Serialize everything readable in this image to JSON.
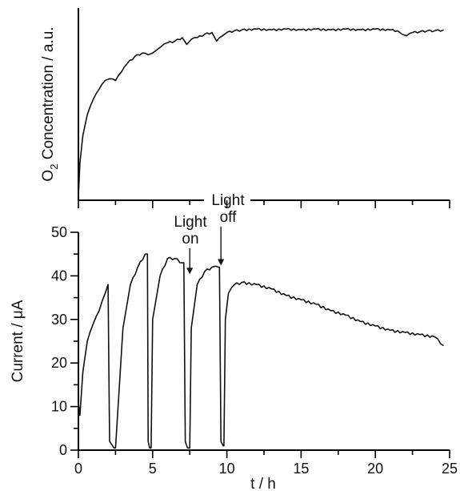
{
  "chart_data": [
    {
      "type": "line",
      "title": "",
      "ylabel": "O2 Concentration / a.u.",
      "ylabel_main": "O",
      "ylabel_sub": "2",
      "ylabel_rest": " Concentration / a.u.",
      "xlim": [
        0,
        25
      ],
      "y_units": "arbitrary (0 = baseline, 1 = plateau)",
      "series": [
        {
          "x": [
            0,
            0.1,
            0.3,
            0.6,
            1.0,
            1.4,
            1.8,
            2.1,
            2.5,
            2.9,
            3.3,
            3.8,
            4.3,
            4.7,
            5.0,
            5.3,
            5.6,
            6.0,
            6.5,
            7.0,
            7.3,
            7.6,
            8.0,
            8.5,
            9.0,
            9.3,
            9.7,
            10.0,
            10.5,
            11.0,
            12.0,
            13.0,
            14.0,
            15.0,
            16.0,
            17.0,
            18.0,
            19.0,
            20.0,
            21.0,
            21.5,
            21.8,
            22.1,
            22.5,
            23.0,
            23.5,
            24.0,
            24.6
          ],
          "y": [
            0.0,
            0.2,
            0.36,
            0.48,
            0.57,
            0.63,
            0.68,
            0.69,
            0.68,
            0.73,
            0.78,
            0.82,
            0.84,
            0.83,
            0.84,
            0.86,
            0.88,
            0.9,
            0.91,
            0.93,
            0.89,
            0.92,
            0.93,
            0.95,
            0.96,
            0.91,
            0.94,
            0.96,
            0.97,
            0.975,
            0.98,
            0.975,
            0.98,
            0.975,
            0.98,
            0.975,
            0.98,
            0.975,
            0.98,
            0.975,
            0.97,
            0.95,
            0.94,
            0.96,
            0.965,
            0.97,
            0.97,
            0.975
          ]
        }
      ]
    },
    {
      "type": "line",
      "title": "",
      "xlabel": "t / h",
      "ylabel": "Current / μA",
      "xlim": [
        0,
        25
      ],
      "ylim": [
        0,
        50
      ],
      "xticks": [
        0,
        5,
        10,
        15,
        20,
        25
      ],
      "xtick_labels": [
        "0",
        "5",
        "10",
        "15",
        "20",
        "25"
      ],
      "yticks": [
        0,
        10,
        20,
        30,
        40,
        50
      ],
      "ytick_labels": [
        "0",
        "10",
        "20",
        "30",
        "40",
        "50"
      ],
      "annotations": [
        {
          "lines": [
            "Light",
            "on"
          ],
          "x": 7.5,
          "y_arrow": 40
        },
        {
          "lines": [
            "Light",
            "off"
          ],
          "x": 9.6,
          "y_arrow": 42
        }
      ],
      "series": [
        {
          "x": [
            0,
            0.1,
            0.3,
            0.6,
            1.0,
            1.4,
            1.8,
            2.0,
            2.05,
            2.1,
            2.3,
            2.4,
            2.5,
            3.0,
            3.5,
            4.0,
            4.5,
            4.65,
            4.7,
            4.8,
            4.9,
            5.0,
            5.5,
            6.0,
            6.5,
            7.0,
            7.1,
            7.2,
            7.35,
            7.5,
            7.6,
            8.0,
            8.5,
            9.0,
            9.45,
            9.5,
            9.6,
            9.75,
            9.8,
            9.9,
            10.1,
            10.5,
            11.0,
            12.0,
            13.0,
            14.0,
            15.0,
            16.0,
            17.0,
            18.0,
            19.0,
            20.0,
            21.0,
            22.0,
            23.0,
            24.0,
            24.6
          ],
          "y": [
            11,
            8,
            18,
            25,
            29,
            32,
            36,
            38,
            20,
            2,
            1,
            0.5,
            0.5,
            28,
            38,
            42,
            45,
            45,
            2,
            0.5,
            0.5,
            30,
            40,
            44,
            44,
            43,
            43,
            2,
            0.5,
            0.5,
            28,
            38,
            41,
            42,
            42,
            42,
            2,
            1,
            1,
            30,
            36,
            38,
            38.5,
            38,
            37,
            35.5,
            34.5,
            33.5,
            32,
            31,
            29.5,
            28.5,
            27.5,
            27,
            26.5,
            26,
            24
          ]
        }
      ]
    }
  ]
}
